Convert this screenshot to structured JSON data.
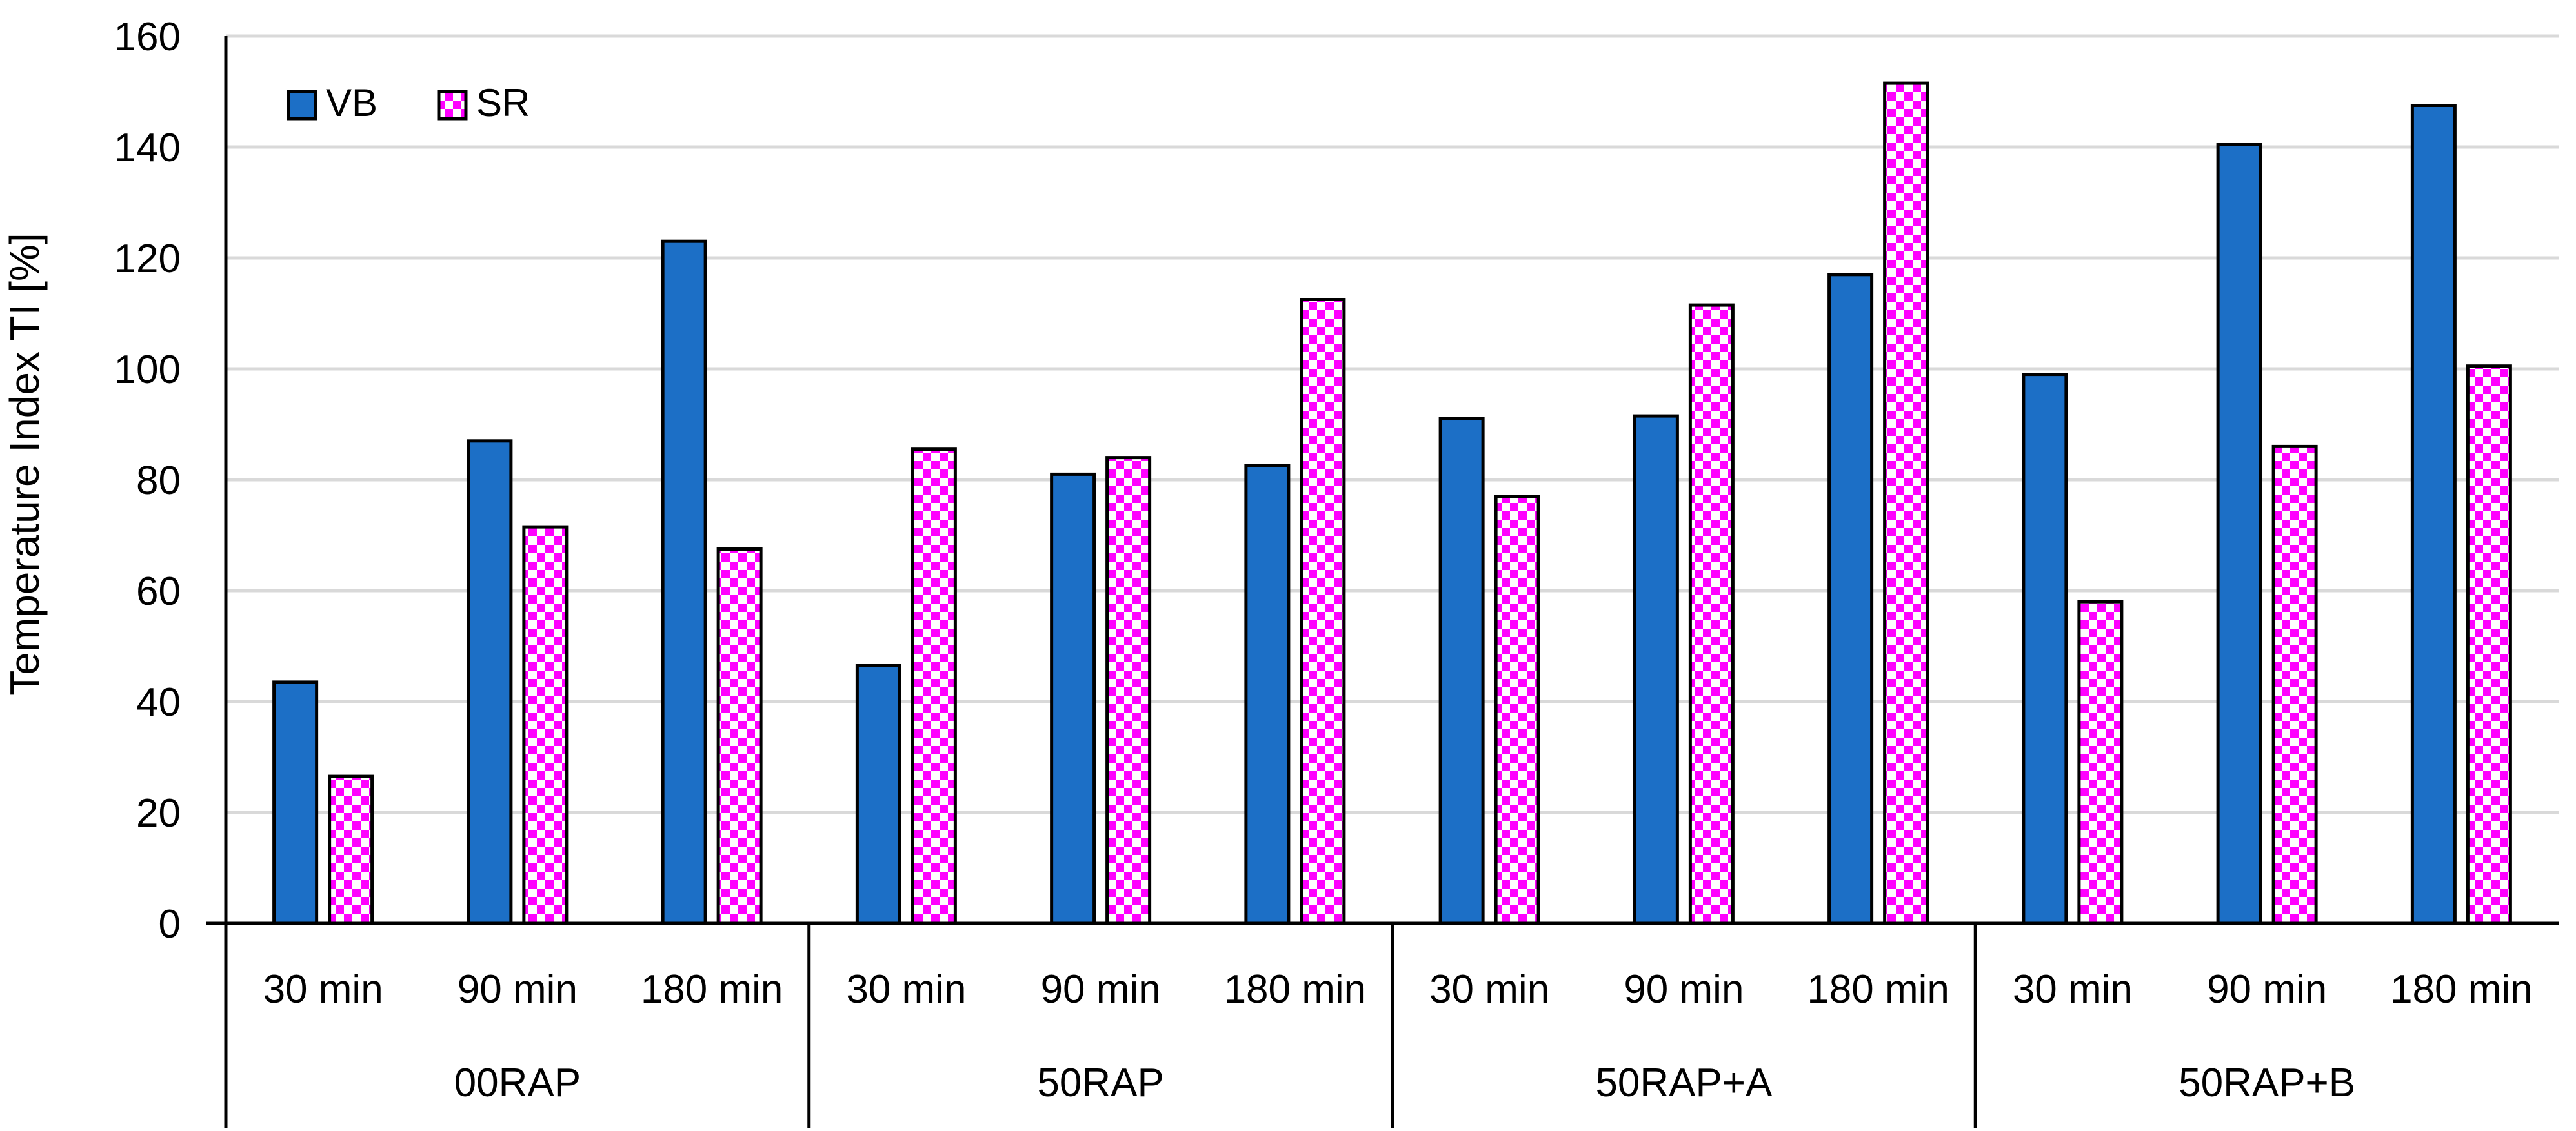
{
  "chart_data": {
    "type": "bar",
    "title": "",
    "xlabel": "",
    "ylabel": "Temperature Index TI [%]",
    "ylim": [
      0,
      160
    ],
    "yticks": [
      0,
      20,
      40,
      60,
      80,
      100,
      120,
      140,
      160
    ],
    "grid": true,
    "legend_position": "top-left",
    "groups": [
      {
        "name": "00RAP",
        "categories": [
          "30 min",
          "90 min",
          "180 min"
        ]
      },
      {
        "name": "50RAP",
        "categories": [
          "30 min",
          "90 min",
          "180 min"
        ]
      },
      {
        "name": "50RAP+A",
        "categories": [
          "30 min",
          "90 min",
          "180 min"
        ]
      },
      {
        "name": "50RAP+B",
        "categories": [
          "30 min",
          "90 min",
          "180 min"
        ]
      }
    ],
    "series": [
      {
        "name": "VB",
        "color": "#1C6FC6",
        "pattern": "solid",
        "values": [
          43.5,
          87,
          123,
          46.5,
          81,
          82.5,
          91,
          91.5,
          117,
          99,
          140.5,
          147.5
        ]
      },
      {
        "name": "SR",
        "color": "#FF00FF",
        "pattern": "checkerboard",
        "values": [
          26.5,
          71.5,
          67.5,
          85.5,
          84,
          112.5,
          77,
          111.5,
          151.5,
          58,
          86,
          100.5
        ]
      }
    ]
  }
}
